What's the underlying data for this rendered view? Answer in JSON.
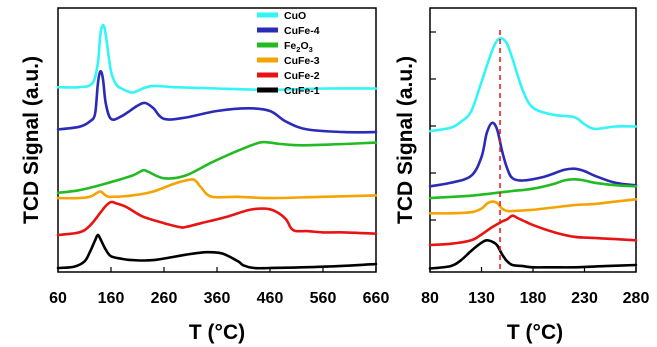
{
  "chart_data": [
    {
      "type": "line",
      "xlabel": "T (°C)",
      "ylabel": "TCD Signal (a.u.)",
      "xlim": [
        60,
        660
      ],
      "xticks": [
        60,
        160,
        260,
        360,
        460,
        560,
        660
      ],
      "yticks_labeled": false,
      "legend_position": "top-right",
      "legend": [
        {
          "label": "CuO",
          "color": "#33f5f5"
        },
        {
          "label": "CuFe-4",
          "color": "#2b2bb8"
        },
        {
          "label": "Fe",
          "sub1": "2",
          "mid": "O",
          "sub2": "3",
          "color": "#22bb22"
        },
        {
          "label": "CuFe-3",
          "color": "#f5a300"
        },
        {
          "label": "CuFe-2",
          "color": "#e81414"
        },
        {
          "label": "CuFe-1",
          "color": "#000000"
        }
      ],
      "series": [
        {
          "name": "CuO",
          "color": "#33f5f5",
          "x": [
            60,
            100,
            125,
            135,
            140,
            145,
            150,
            160,
            170,
            180,
            200,
            220,
            240,
            280,
            360,
            460,
            560,
            660
          ],
          "y": [
            100,
            100,
            103,
            118,
            140,
            147,
            140,
            112,
            102,
            99,
            96,
            99,
            101,
            100,
            99,
            98,
            99,
            99
          ]
        },
        {
          "name": "CuFe-4",
          "color": "#2b2bb8",
          "x": [
            60,
            100,
            120,
            130,
            135,
            140,
            145,
            150,
            160,
            180,
            210,
            225,
            240,
            260,
            300,
            360,
            420,
            460,
            490,
            530,
            600,
            660
          ],
          "y": [
            68,
            70,
            74,
            80,
            102,
            112,
            106,
            88,
            76,
            78,
            86,
            88,
            84,
            76,
            77,
            82,
            84,
            82,
            74,
            68,
            66,
            66
          ]
        },
        {
          "name": "Fe2O3",
          "color": "#22bb22",
          "x": [
            60,
            100,
            150,
            200,
            220,
            230,
            260,
            300,
            350,
            400,
            440,
            460,
            480,
            520,
            600,
            660
          ],
          "y": [
            20,
            22,
            27,
            33,
            37,
            36,
            31,
            33,
            43,
            52,
            58,
            58,
            57,
            56,
            57,
            58
          ]
        },
        {
          "name": "CuFe-3",
          "color": "#f5a300",
          "x": [
            60,
            100,
            120,
            130,
            140,
            150,
            160,
            200,
            240,
            280,
            310,
            320,
            330,
            350,
            400,
            460,
            560,
            660
          ],
          "y": [
            16,
            16,
            17,
            19,
            21,
            18,
            17,
            18,
            21,
            27,
            30,
            29,
            24,
            17,
            17,
            16,
            17,
            18
          ]
        },
        {
          "name": "CuFe-2",
          "color": "#e81414",
          "x": [
            60,
            100,
            120,
            140,
            150,
            160,
            170,
            190,
            220,
            260,
            290,
            300,
            330,
            380,
            420,
            450,
            470,
            490,
            500,
            510,
            530,
            560,
            600,
            660
          ],
          "y": [
            -12,
            -10,
            -5,
            5,
            10,
            13,
            12,
            9,
            2,
            -3,
            -6,
            -6,
            -3,
            2,
            7,
            8,
            6,
            0,
            -7,
            -9,
            -9,
            -10,
            -10,
            -11
          ]
        },
        {
          "name": "CuFe-1",
          "color": "#000000",
          "x": [
            60,
            90,
            110,
            120,
            130,
            135,
            140,
            150,
            160,
            180,
            200,
            240,
            300,
            340,
            370,
            400,
            410,
            430,
            460,
            560,
            660
          ],
          "y": [
            -37,
            -36,
            -32,
            -25,
            -16,
            -12,
            -15,
            -23,
            -28,
            -30,
            -31,
            -31,
            -27,
            -25,
            -26,
            -32,
            -35,
            -37,
            -37,
            -36,
            -34
          ]
        }
      ]
    },
    {
      "type": "line",
      "xlabel": "T (°C)",
      "ylabel": "TCD Signal (a.u.)",
      "xlim": [
        80,
        280
      ],
      "xticks": [
        80,
        130,
        180,
        230,
        280
      ],
      "yticks_labeled": false,
      "reference_line": {
        "x": 148,
        "style": "dashed",
        "color": "#e81414"
      },
      "series": [
        {
          "name": "CuO",
          "color": "#33f5f5",
          "x": [
            80,
            100,
            110,
            120,
            130,
            140,
            145,
            150,
            155,
            160,
            170,
            180,
            200,
            220,
            230,
            240,
            260,
            280
          ],
          "y": [
            120,
            123,
            128,
            137,
            162,
            188,
            197,
            199,
            194,
            182,
            155,
            140,
            134,
            132,
            126,
            122,
            124,
            124
          ]
        },
        {
          "name": "CuFe-4",
          "color": "#2b2bb8",
          "x": [
            80,
            100,
            120,
            130,
            135,
            140,
            145,
            150,
            155,
            160,
            170,
            190,
            210,
            220,
            230,
            240,
            260,
            280
          ],
          "y": [
            73,
            76,
            82,
            98,
            118,
            127,
            122,
            103,
            88,
            80,
            78,
            81,
            87,
            88,
            86,
            82,
            76,
            74
          ]
        },
        {
          "name": "Fe2O3",
          "color": "#22bb22",
          "x": [
            80,
            100,
            120,
            140,
            160,
            180,
            200,
            210,
            220,
            230,
            240,
            260,
            280
          ],
          "y": [
            63,
            64,
            65,
            67,
            69,
            71,
            75,
            78,
            79,
            78,
            76,
            74,
            73
          ]
        },
        {
          "name": "CuFe-3",
          "color": "#f5a300",
          "x": [
            80,
            100,
            120,
            130,
            135,
            140,
            145,
            150,
            155,
            160,
            180,
            200,
            220,
            240,
            260,
            280
          ],
          "y": [
            50,
            50,
            51,
            54,
            58,
            60,
            59,
            54,
            52,
            52,
            53,
            55,
            57,
            58,
            60,
            62
          ]
        },
        {
          "name": "CuFe-2",
          "color": "#e81414",
          "x": [
            80,
            100,
            120,
            130,
            140,
            150,
            155,
            160,
            165,
            170,
            180,
            200,
            220,
            240,
            260,
            280
          ],
          "y": [
            23,
            24,
            27,
            32,
            38,
            43,
            45,
            48,
            46,
            44,
            40,
            34,
            30,
            29,
            28,
            27
          ]
        },
        {
          "name": "CuFe-1",
          "color": "#000000",
          "x": [
            80,
            100,
            110,
            120,
            130,
            135,
            140,
            145,
            150,
            155,
            160,
            170,
            180,
            200,
            220,
            250,
            280
          ],
          "y": [
            3,
            5,
            10,
            18,
            25,
            27,
            26,
            23,
            15,
            9,
            6,
            5,
            4,
            4,
            4,
            5,
            6
          ]
        }
      ]
    }
  ]
}
